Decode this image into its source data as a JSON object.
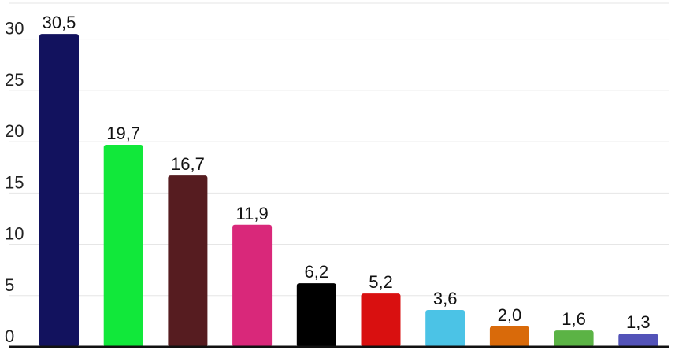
{
  "chart_data": {
    "type": "bar",
    "title": "",
    "xlabel": "",
    "ylabel": "",
    "categories": [
      "",
      "",
      "",
      "",
      "",
      "",
      "",
      "",
      "",
      ""
    ],
    "values": [
      30.5,
      19.7,
      16.7,
      11.9,
      6.2,
      5.2,
      3.6,
      2.0,
      1.6,
      1.3
    ],
    "value_labels": [
      "30,5",
      "19,7",
      "16,7",
      "11,9",
      "6,2",
      "5,2",
      "3,6",
      "2,0",
      "1,6",
      "1,3"
    ],
    "colors": [
      "#12125e",
      "#11e83a",
      "#561c20",
      "#d9287a",
      "#000000",
      "#d91010",
      "#4bc3e6",
      "#d96a0a",
      "#5bb345",
      "#5353b8"
    ],
    "ylim": [
      0,
      33.5
    ],
    "yticks": [
      0,
      5,
      10,
      15,
      20,
      25,
      30
    ],
    "ytick_labels": [
      "0",
      "5",
      "10",
      "15",
      "20",
      "25",
      "30"
    ],
    "grid": true,
    "legend": "none"
  }
}
